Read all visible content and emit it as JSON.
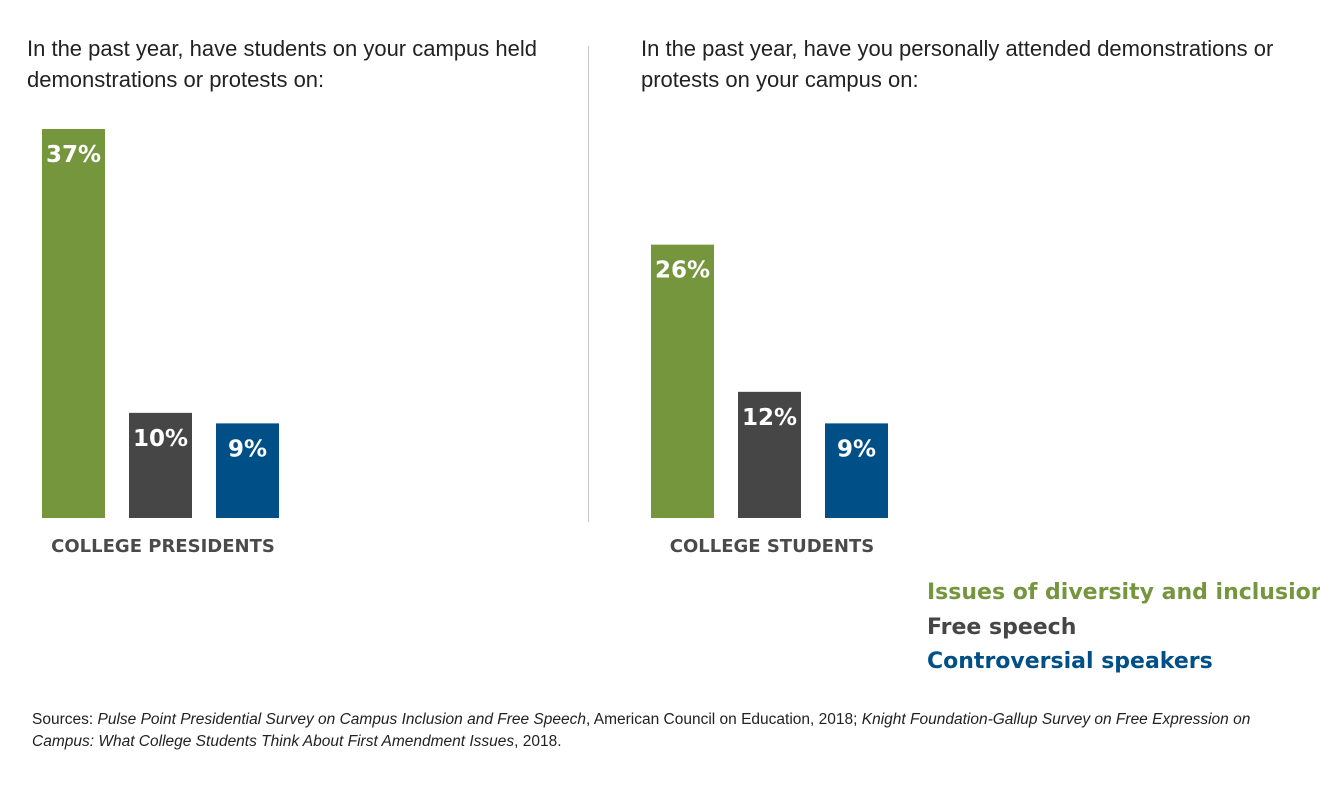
{
  "colors": {
    "diversity": "#76963e",
    "free_speech": "#464646",
    "speakers": "#005087"
  },
  "legend": [
    {
      "label": "Issues of diversity and inclusion",
      "color": "#76963e"
    },
    {
      "label": "Free speech",
      "color": "#464646"
    },
    {
      "label": "Controversial speakers",
      "color": "#005087"
    }
  ],
  "sources": {
    "prefix": "Sources: ",
    "title1": "Pulse Point Presidential Survey on Campus Inclusion and Free Speech",
    "mid": ", American Council on Education, 2018; ",
    "title2": "Knight Foundation-Gallup Survey on Free Expression on Campus: What College Students Think About First Amendment Issues",
    "suffix": ", 2018."
  },
  "chart_data": [
    {
      "type": "bar",
      "title": "In the past year, have students on your campus held demonstrations or protests on:",
      "xlabel": "COLLEGE PRESIDENTS",
      "categories": [
        "Issues of diversity and inclusion",
        "Free speech",
        "Controversial speakers"
      ],
      "values": [
        37,
        10,
        9
      ],
      "value_labels": [
        "37%",
        "10%",
        "9%"
      ],
      "colors": [
        "#76963e",
        "#464646",
        "#005087"
      ],
      "ylim": [
        0,
        37
      ],
      "legend": "bottom-right"
    },
    {
      "type": "bar",
      "title": "In the past year, have you personally attended demonstrations or protests on your campus on:",
      "xlabel": "COLLEGE STUDENTS",
      "categories": [
        "Issues of diversity and inclusion",
        "Free speech",
        "Controversial speakers"
      ],
      "values": [
        26,
        12,
        9
      ],
      "value_labels": [
        "26%",
        "12%",
        "9%"
      ],
      "colors": [
        "#76963e",
        "#464646",
        "#005087"
      ],
      "ylim": [
        0,
        37
      ],
      "legend": "bottom-right"
    }
  ]
}
